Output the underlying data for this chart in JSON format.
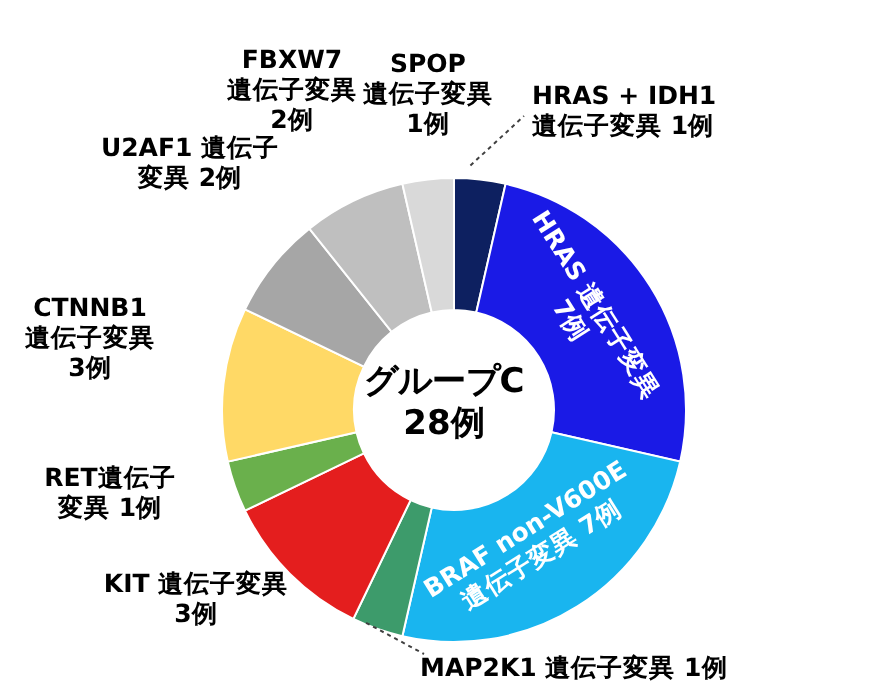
{
  "chart_data": {
    "type": "donut",
    "title": "グループC\n28例",
    "categories": [
      "HRAS + IDH1\n遺伝子変異 1例",
      "HRAS 遺伝子変異\n7例",
      "BRAF non-V600E\n遺伝子変異 7例",
      "MAP2K1 遺伝子変異 1例",
      "KIT 遺伝子変異\n3例",
      "RET遺伝子変異 1例",
      "CTNNB1\n遺伝子変異\n3例",
      "U2AF1 遺伝子変異 2例",
      "FBXW7\n遺伝子変異\n2例",
      "SPOP\n遺伝子変異\n1例"
    ],
    "values": [
      1,
      7,
      7,
      1,
      3,
      1,
      3,
      2,
      2,
      1
    ],
    "colors": [
      "#0d2060",
      "#1a1ae6",
      "#19b5ef",
      "#3d9b6b",
      "#e41e1e",
      "#6ab04c",
      "#ffd966",
      "#a6a6a6",
      "#bfbfbf",
      "#d9d9d9"
    ],
    "legend": false
  }
}
